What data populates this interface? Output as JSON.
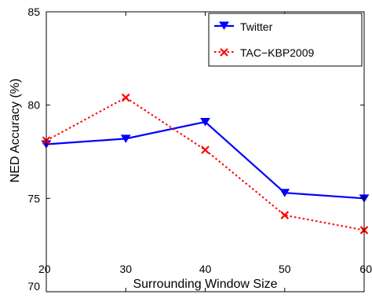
{
  "chart_data": {
    "type": "line",
    "title": "",
    "xlabel": "Surrounding Window Size",
    "ylabel": "NED Accuracy (%)",
    "xlim": [
      20,
      60
    ],
    "ylim": [
      70,
      85
    ],
    "xticks": [
      20,
      30,
      40,
      50,
      60
    ],
    "yticks": [
      70,
      75,
      80,
      85
    ],
    "grid": false,
    "legend_position": "top-right",
    "x": [
      20,
      30,
      40,
      50,
      60
    ],
    "series": [
      {
        "name": "Twitter",
        "values": [
          77.9,
          78.2,
          79.1,
          75.3,
          75.0
        ],
        "color": "#0000ff",
        "line_style": "solid",
        "marker": "triangle-down"
      },
      {
        "name": "TAC−KBP2009",
        "values": [
          78.1,
          80.4,
          77.6,
          74.1,
          73.3
        ],
        "color": "#ff0000",
        "line_style": "dotted",
        "marker": "x"
      }
    ]
  }
}
